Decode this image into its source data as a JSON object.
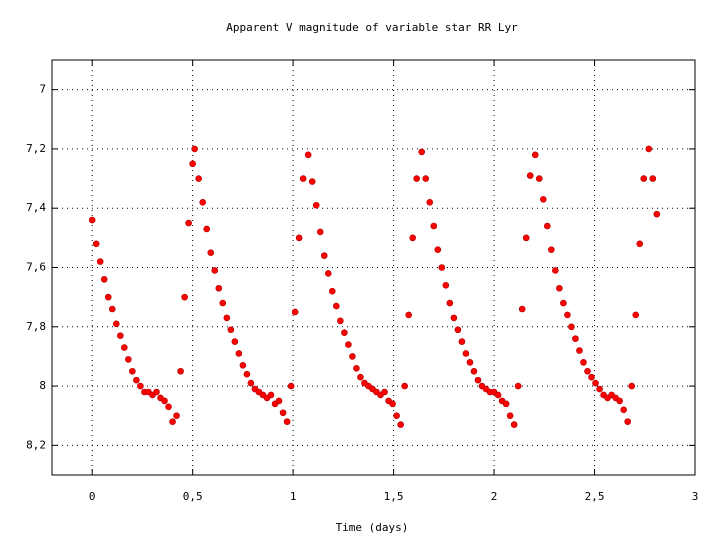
{
  "chart_data": {
    "type": "scatter",
    "title": "Apparent V magnitude of variable star RR Lyr",
    "x_label": "Time (days)",
    "color": "#ff0000",
    "xlim": [
      -0.2,
      3
    ],
    "ylim": [
      8.3,
      6.9
    ],
    "xticks": [
      0,
      {
        "value": 0.5,
        "label": "0,5"
      },
      1,
      {
        "value": 1.5,
        "label": "1,5"
      },
      2,
      {
        "value": 2.5,
        "label": "2,5"
      },
      3
    ],
    "yticks": [
      7,
      {
        "value": 7.2,
        "label": "7,2"
      },
      {
        "value": 7.4,
        "label": "7,4"
      },
      {
        "value": 7.6,
        "label": "7,6"
      },
      {
        "value": 7.8,
        "label": "7,8"
      },
      8,
      {
        "value": 8.2,
        "label": "8,2"
      }
    ],
    "grid": true,
    "x": [
      0.0,
      0.02,
      0.04,
      0.06,
      0.08,
      0.1,
      0.12,
      0.14,
      0.16,
      0.18,
      0.2,
      0.22,
      0.24,
      0.26,
      0.28,
      0.3,
      0.32,
      0.34,
      0.36,
      0.38,
      0.4,
      0.42,
      0.44,
      0.46,
      0.48,
      0.5,
      0.51,
      0.53,
      0.55,
      0.57,
      0.59,
      0.61,
      0.63,
      0.65,
      0.67,
      0.69,
      0.71,
      0.73,
      0.75,
      0.77,
      0.79,
      0.81,
      0.83,
      0.85,
      0.87,
      0.89,
      0.91,
      0.93,
      0.95,
      0.97,
      0.99,
      1.01,
      1.03,
      1.05,
      1.075,
      1.095,
      1.115,
      1.135,
      1.155,
      1.175,
      1.195,
      1.215,
      1.235,
      1.255,
      1.275,
      1.295,
      1.315,
      1.335,
      1.355,
      1.375,
      1.395,
      1.415,
      1.435,
      1.455,
      1.475,
      1.495,
      1.515,
      1.535,
      1.555,
      1.575,
      1.595,
      1.615,
      1.64,
      1.66,
      1.68,
      1.7,
      1.72,
      1.74,
      1.76,
      1.78,
      1.8,
      1.82,
      1.84,
      1.86,
      1.88,
      1.9,
      1.92,
      1.94,
      1.96,
      1.98,
      2.0,
      2.02,
      2.04,
      2.06,
      2.08,
      2.1,
      2.12,
      2.14,
      2.16,
      2.18,
      2.205,
      2.225,
      2.245,
      2.265,
      2.285,
      2.305,
      2.325,
      2.345,
      2.365,
      2.385,
      2.405,
      2.425,
      2.445,
      2.465,
      2.485,
      2.505,
      2.525,
      2.545,
      2.565,
      2.585,
      2.605,
      2.625,
      2.645,
      2.665,
      2.685,
      2.705,
      2.725,
      2.745,
      2.77,
      2.79,
      2.81
    ],
    "values": [
      7.44,
      7.52,
      7.58,
      7.64,
      7.7,
      7.74,
      7.79,
      7.83,
      7.87,
      7.91,
      7.95,
      7.98,
      8.0,
      8.02,
      8.02,
      8.03,
      8.02,
      8.04,
      8.05,
      8.07,
      8.12,
      8.1,
      7.95,
      7.7,
      7.45,
      7.25,
      7.2,
      7.3,
      7.38,
      7.47,
      7.55,
      7.61,
      7.67,
      7.72,
      7.77,
      7.81,
      7.85,
      7.89,
      7.93,
      7.96,
      7.99,
      8.01,
      8.02,
      8.03,
      8.04,
      8.03,
      8.06,
      8.05,
      8.09,
      8.12,
      8.0,
      7.75,
      7.5,
      7.3,
      7.22,
      7.31,
      7.39,
      7.48,
      7.56,
      7.62,
      7.68,
      7.73,
      7.78,
      7.82,
      7.86,
      7.9,
      7.94,
      7.97,
      7.99,
      8.0,
      8.01,
      8.02,
      8.03,
      8.02,
      8.05,
      8.06,
      8.1,
      8.13,
      8.0,
      7.76,
      7.5,
      7.3,
      7.21,
      7.3,
      7.38,
      7.46,
      7.54,
      7.6,
      7.66,
      7.72,
      7.77,
      7.81,
      7.85,
      7.89,
      7.92,
      7.95,
      7.98,
      8.0,
      8.01,
      8.02,
      8.02,
      8.03,
      8.05,
      8.06,
      8.1,
      8.13,
      8.0,
      7.74,
      7.5,
      7.29,
      7.22,
      7.3,
      7.37,
      7.46,
      7.54,
      7.61,
      7.67,
      7.72,
      7.76,
      7.8,
      7.84,
      7.88,
      7.92,
      7.95,
      7.97,
      7.99,
      8.01,
      8.03,
      8.04,
      8.03,
      8.04,
      8.05,
      8.08,
      8.12,
      8.0,
      7.76,
      7.52,
      7.3,
      7.2,
      7.3,
      7.42
    ]
  }
}
